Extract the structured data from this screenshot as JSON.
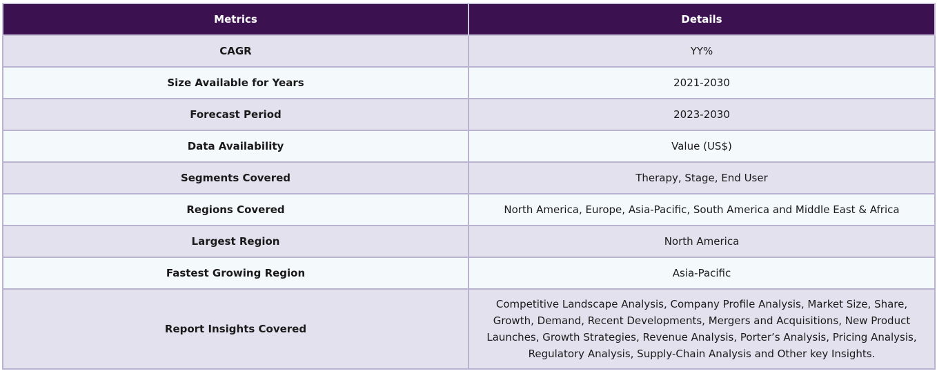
{
  "table": {
    "headers": [
      "Metrics",
      "Details"
    ],
    "rows": [
      {
        "metric": "CAGR",
        "details": "YY%"
      },
      {
        "metric": "Size Available for Years",
        "details": "2021-2030"
      },
      {
        "metric": "Forecast Period",
        "details": "2023-2030"
      },
      {
        "metric": "Data Availability",
        "details": "Value (US$)"
      },
      {
        "metric": "Segments Covered",
        "details": "Therapy, Stage, End User"
      },
      {
        "metric": "Regions Covered",
        "details": "North America, Europe, Asia-Pacific, South America and Middle East & Africa"
      },
      {
        "metric": "Largest Region",
        "details": "North America"
      },
      {
        "metric": "Fastest Growing Region",
        "details": "Asia-Pacific"
      },
      {
        "metric": "Report Insights Covered",
        "details": "Competitive Landscape Analysis, Company Profile Analysis, Market Size, Share, Growth, Demand, Recent Developments, Mergers and Acquisitions, New Product Launches, Growth Strategies, Revenue Analysis, Porter’s Analysis, Pricing Analysis, Regulatory Analysis, Supply-Chain Analysis and Other key Insights."
      }
    ]
  },
  "colors": {
    "header_bg": "#3b1150",
    "header_text": "#ffffff",
    "row_odd_bg": "#e4e1ee",
    "row_even_bg": "#f4f9fc",
    "border": "#b9b3d1"
  }
}
